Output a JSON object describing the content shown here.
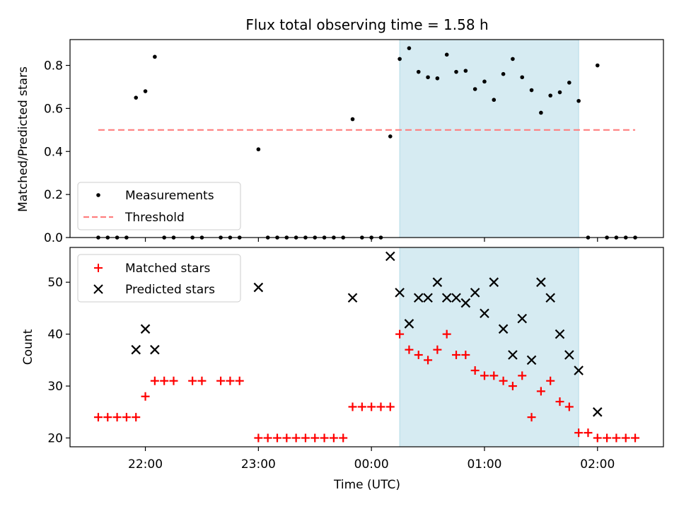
{
  "chart_data": [
    {
      "type": "scatter",
      "title": "Flux total observing time = 1.58 h",
      "ylabel": "Matched/Predicted stars",
      "xlabel": "",
      "ylim": [
        0,
        0.92
      ],
      "yticks": [
        0.0,
        0.2,
        0.4,
        0.6,
        0.8
      ],
      "ytick_labels": [
        "0.0",
        "0.2",
        "0.4",
        "0.6",
        "0.8"
      ],
      "highlight_span": {
        "start": "00:15",
        "end": "01:50",
        "color": "#add8e6"
      },
      "legend": {
        "placement": "lower-left",
        "entries": [
          "Measurements",
          "Threshold"
        ]
      },
      "series": [
        {
          "name": "Measurements",
          "marker": "dot",
          "color": "#000000",
          "points": [
            [
              "21:35",
              0
            ],
            [
              "21:40",
              0
            ],
            [
              "21:45",
              0
            ],
            [
              "21:50",
              0
            ],
            [
              "21:55",
              0.65
            ],
            [
              "22:00",
              0.68
            ],
            [
              "22:05",
              0.84
            ],
            [
              "22:10",
              0
            ],
            [
              "22:15",
              0
            ],
            [
              "22:25",
              0
            ],
            [
              "22:30",
              0
            ],
            [
              "22:40",
              0
            ],
            [
              "22:45",
              0
            ],
            [
              "22:50",
              0
            ],
            [
              "23:00",
              0.41
            ],
            [
              "23:05",
              0
            ],
            [
              "23:10",
              0
            ],
            [
              "23:15",
              0
            ],
            [
              "23:20",
              0
            ],
            [
              "23:25",
              0
            ],
            [
              "23:30",
              0
            ],
            [
              "23:35",
              0
            ],
            [
              "23:40",
              0
            ],
            [
              "23:45",
              0
            ],
            [
              "23:50",
              0.55
            ],
            [
              "23:55",
              0
            ],
            [
              "00:00",
              0
            ],
            [
              "00:05",
              0
            ],
            [
              "00:10",
              0.47
            ],
            [
              "00:15",
              0.83
            ],
            [
              "00:20",
              0.88
            ],
            [
              "00:25",
              0.77
            ],
            [
              "00:30",
              0.745
            ],
            [
              "00:35",
              0.74
            ],
            [
              "00:40",
              0.85
            ],
            [
              "00:45",
              0.77
            ],
            [
              "00:50",
              0.775
            ],
            [
              "00:55",
              0.69
            ],
            [
              "01:00",
              0.725
            ],
            [
              "01:05",
              0.64
            ],
            [
              "01:10",
              0.76
            ],
            [
              "01:15",
              0.83
            ],
            [
              "01:20",
              0.745
            ],
            [
              "01:25",
              0.685
            ],
            [
              "01:30",
              0.58
            ],
            [
              "01:35",
              0.66
            ],
            [
              "01:40",
              0.675
            ],
            [
              "01:45",
              0.72
            ],
            [
              "01:50",
              0.635
            ],
            [
              "01:55",
              0
            ],
            [
              "02:00",
              0.8
            ],
            [
              "02:05",
              0
            ],
            [
              "02:10",
              0
            ],
            [
              "02:15",
              0
            ],
            [
              "02:20",
              0
            ]
          ]
        },
        {
          "name": "Threshold",
          "marker": "dashed-line",
          "color": "#ff7f7f",
          "x": [
            "21:35",
            "02:20"
          ],
          "y": [
            0.5,
            0.5
          ]
        }
      ]
    },
    {
      "type": "scatter",
      "ylabel": "Count",
      "xlabel": "Time (UTC)",
      "ylim": [
        18.3,
        56.7
      ],
      "yticks": [
        20,
        30,
        40,
        50
      ],
      "ytick_labels": [
        "20",
        "30",
        "40",
        "50"
      ],
      "xlim": [
        "21:20",
        "02:35"
      ],
      "xticks": [
        "22:00",
        "23:00",
        "00:00",
        "01:00",
        "02:00"
      ],
      "xtick_labels": [
        "22:00",
        "23:00",
        "00:00",
        "01:00",
        "02:00"
      ],
      "highlight_span": {
        "start": "00:15",
        "end": "01:50",
        "color": "#add8e6"
      },
      "legend": {
        "placement": "upper-left",
        "entries": [
          "Matched stars",
          "Predicted stars"
        ]
      },
      "series": [
        {
          "name": "Matched stars",
          "marker": "plus",
          "color": "#ff0000",
          "points": [
            [
              "21:35",
              24
            ],
            [
              "21:40",
              24
            ],
            [
              "21:45",
              24
            ],
            [
              "21:50",
              24
            ],
            [
              "21:55",
              24
            ],
            [
              "22:00",
              28
            ],
            [
              "22:05",
              31
            ],
            [
              "22:10",
              31
            ],
            [
              "22:15",
              31
            ],
            [
              "22:25",
              31
            ],
            [
              "22:30",
              31
            ],
            [
              "22:40",
              31
            ],
            [
              "22:45",
              31
            ],
            [
              "22:50",
              31
            ],
            [
              "23:00",
              20
            ],
            [
              "23:05",
              20
            ],
            [
              "23:10",
              20
            ],
            [
              "23:15",
              20
            ],
            [
              "23:20",
              20
            ],
            [
              "23:25",
              20
            ],
            [
              "23:30",
              20
            ],
            [
              "23:35",
              20
            ],
            [
              "23:40",
              20
            ],
            [
              "23:45",
              20
            ],
            [
              "23:50",
              26
            ],
            [
              "23:55",
              26
            ],
            [
              "00:00",
              26
            ],
            [
              "00:05",
              26
            ],
            [
              "00:10",
              26
            ],
            [
              "00:15",
              40
            ],
            [
              "00:20",
              37
            ],
            [
              "00:25",
              36
            ],
            [
              "00:30",
              35
            ],
            [
              "00:35",
              37
            ],
            [
              "00:40",
              40
            ],
            [
              "00:45",
              36
            ],
            [
              "00:50",
              36
            ],
            [
              "00:55",
              33
            ],
            [
              "01:00",
              32
            ],
            [
              "01:05",
              32
            ],
            [
              "01:10",
              31
            ],
            [
              "01:15",
              30
            ],
            [
              "01:20",
              32
            ],
            [
              "01:25",
              24
            ],
            [
              "01:30",
              29
            ],
            [
              "01:35",
              31
            ],
            [
              "01:40",
              27
            ],
            [
              "01:45",
              26
            ],
            [
              "01:50",
              21
            ],
            [
              "01:55",
              21
            ],
            [
              "02:00",
              20
            ],
            [
              "02:05",
              20
            ],
            [
              "02:10",
              20
            ],
            [
              "02:15",
              20
            ],
            [
              "02:20",
              20
            ]
          ]
        },
        {
          "name": "Predicted stars",
          "marker": "x",
          "color": "#000000",
          "points": [
            [
              "21:55",
              37
            ],
            [
              "22:00",
              41
            ],
            [
              "22:05",
              37
            ],
            [
              "23:00",
              49
            ],
            [
              "23:50",
              47
            ],
            [
              "00:10",
              55
            ],
            [
              "00:15",
              48
            ],
            [
              "00:20",
              42
            ],
            [
              "00:25",
              47
            ],
            [
              "00:30",
              47
            ],
            [
              "00:35",
              50
            ],
            [
              "00:40",
              47
            ],
            [
              "00:45",
              47
            ],
            [
              "00:50",
              46
            ],
            [
              "00:55",
              48
            ],
            [
              "01:00",
              44
            ],
            [
              "01:05",
              50
            ],
            [
              "01:10",
              41
            ],
            [
              "01:15",
              36
            ],
            [
              "01:20",
              43
            ],
            [
              "01:25",
              35
            ],
            [
              "01:30",
              50
            ],
            [
              "01:35",
              47
            ],
            [
              "01:40",
              40
            ],
            [
              "01:45",
              36
            ],
            [
              "01:50",
              33
            ],
            [
              "02:00",
              25
            ]
          ]
        }
      ]
    }
  ]
}
